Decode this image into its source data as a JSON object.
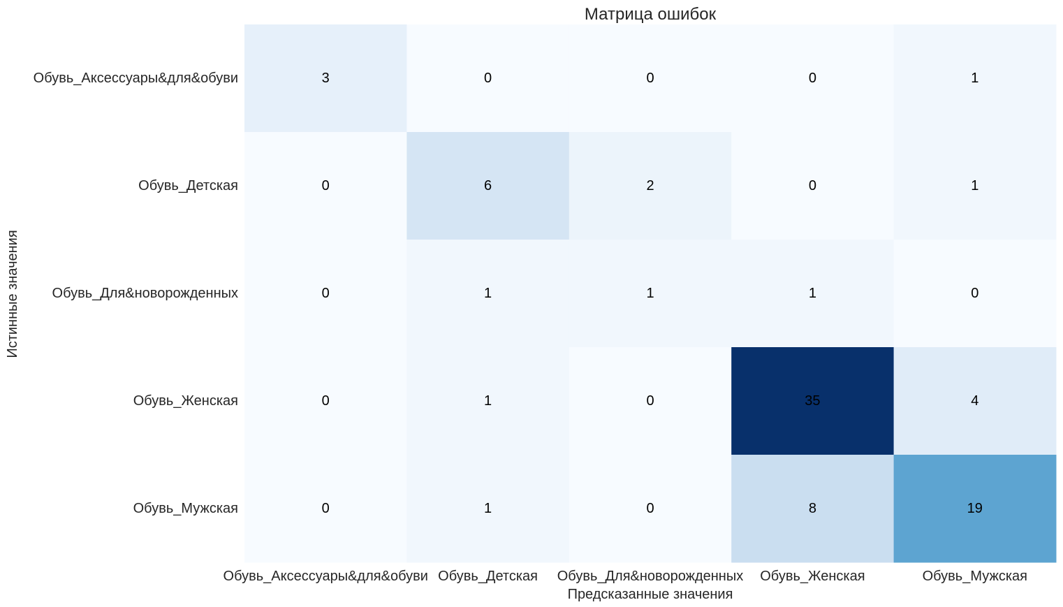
{
  "chart_data": {
    "type": "heatmap",
    "title": "Матрица ошибок",
    "xlabel": "Предсказанные значения",
    "ylabel": "Истинные значения",
    "x_categories": [
      "Обувь_Аксессуары&для&обуви",
      "Обувь_Детская",
      "Обувь_Для&новорожденных",
      "Обувь_Женская",
      "Обувь_Мужская"
    ],
    "y_categories": [
      "Обувь_Аксессуары&для&обуви",
      "Обувь_Детская",
      "Обувь_Для&новорожденных",
      "Обувь_Женская",
      "Обувь_Мужская"
    ],
    "values": [
      [
        3,
        0,
        0,
        0,
        1
      ],
      [
        0,
        6,
        2,
        0,
        1
      ],
      [
        0,
        1,
        1,
        1,
        0
      ],
      [
        0,
        1,
        0,
        35,
        4
      ],
      [
        0,
        1,
        0,
        8,
        19
      ]
    ],
    "colormap": "Blues",
    "value_range": [
      0,
      35
    ],
    "colorbar": false,
    "grid": false
  }
}
